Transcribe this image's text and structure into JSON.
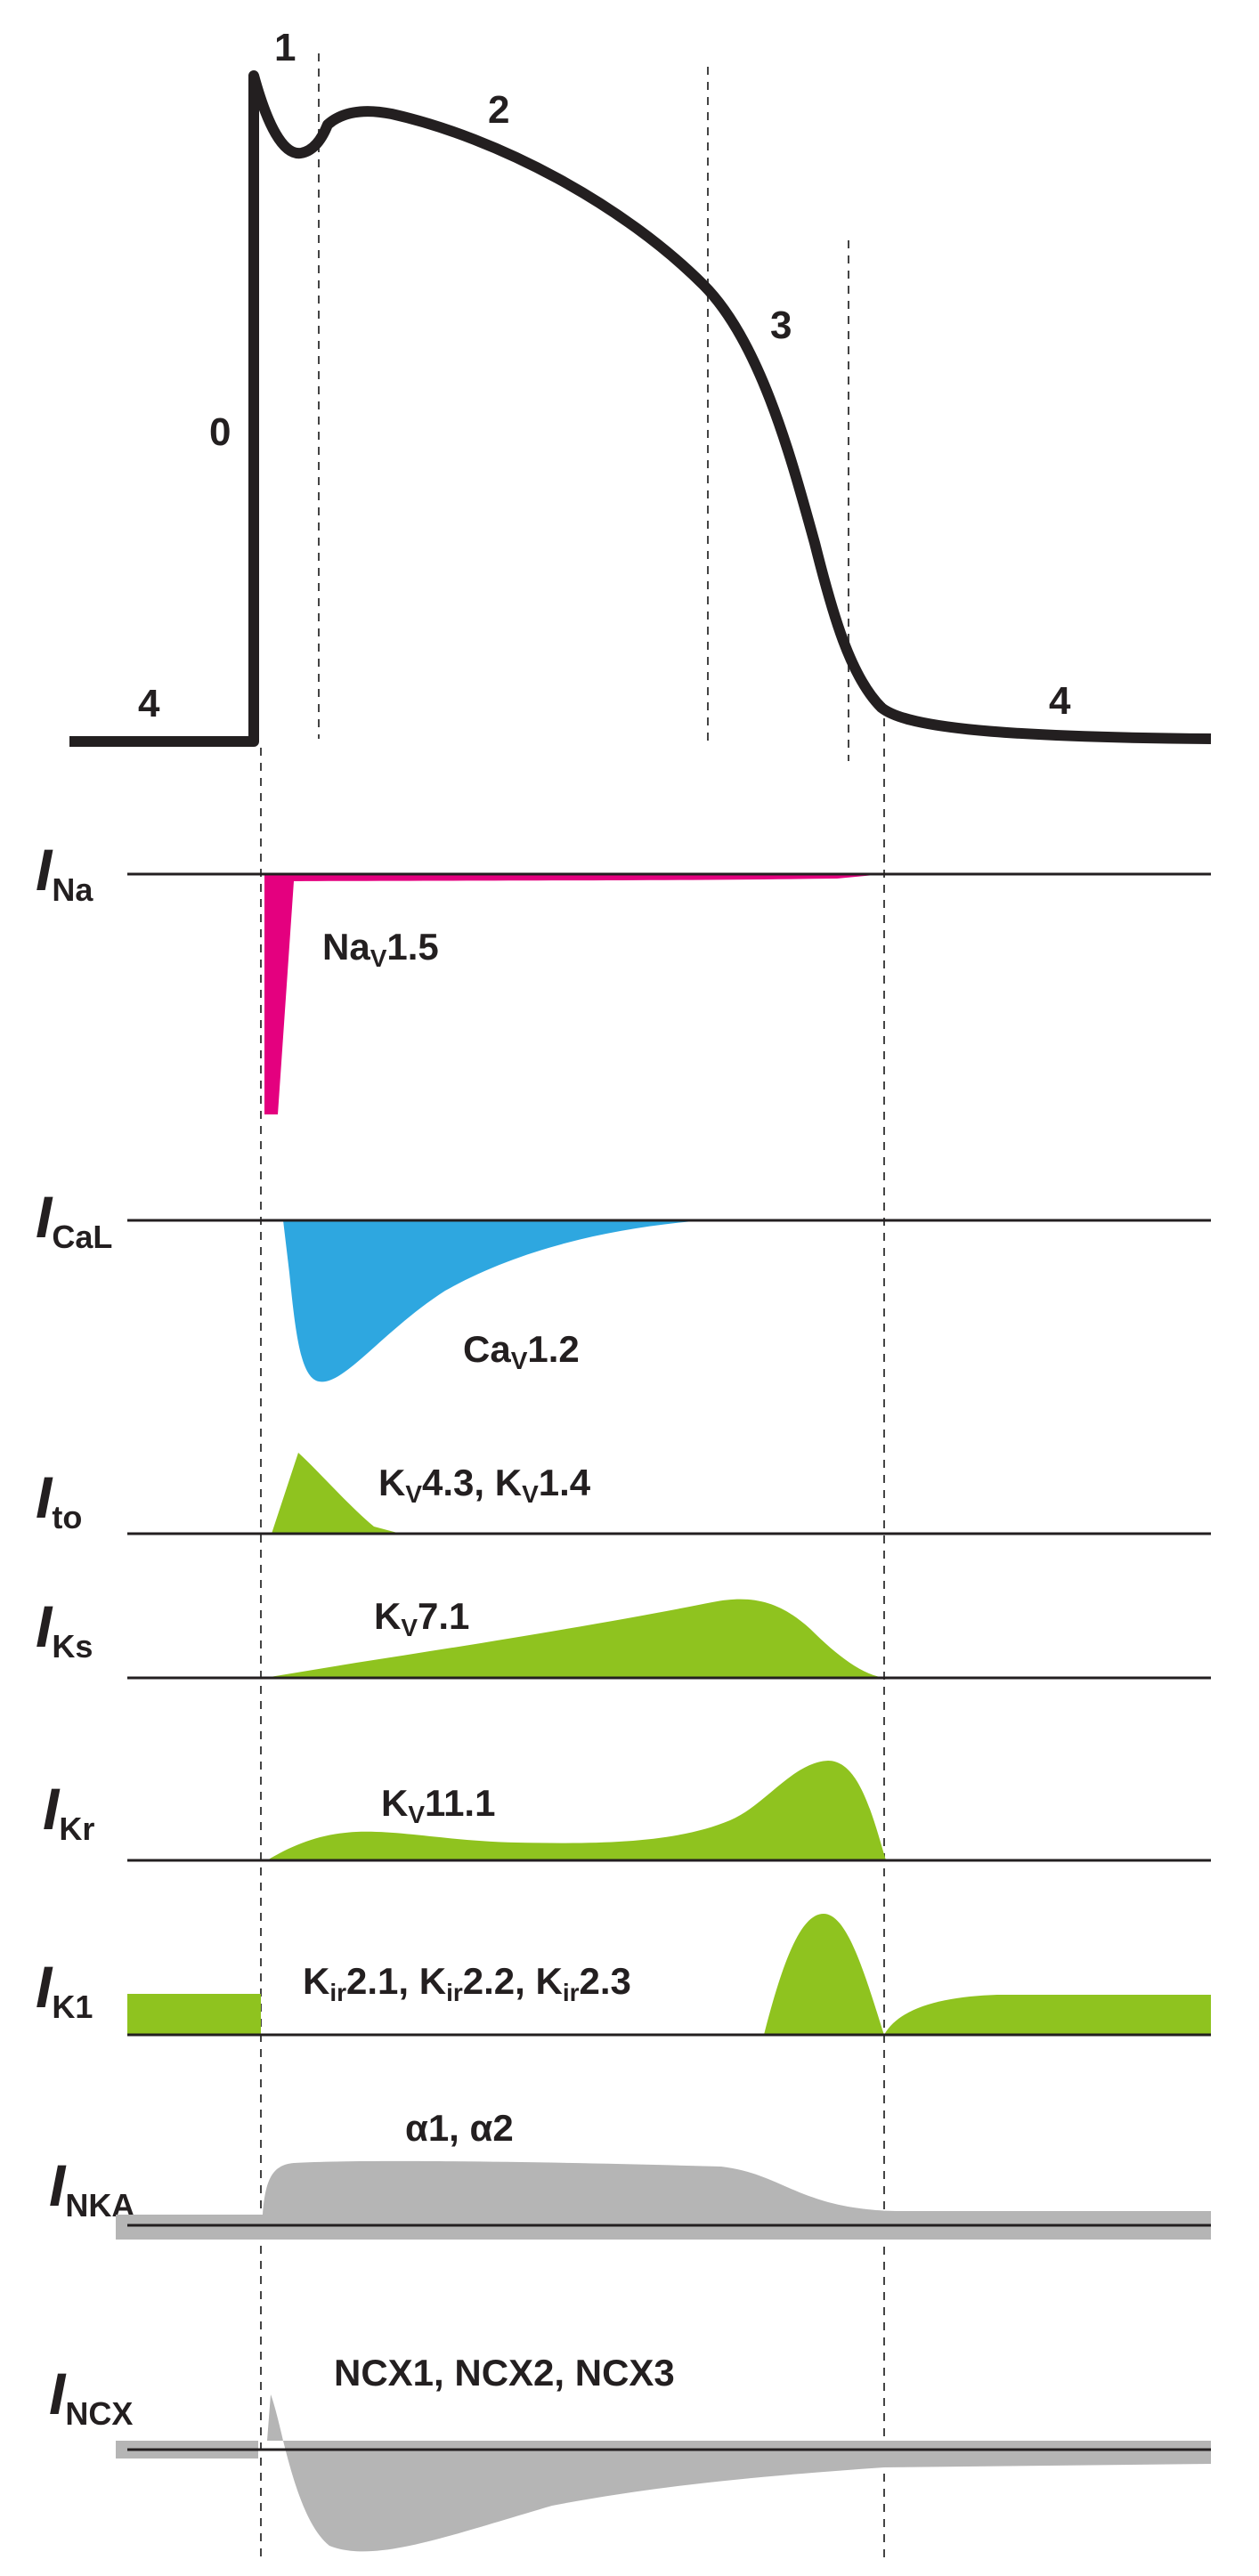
{
  "action_potential": {
    "phases": [
      "0",
      "1",
      "2",
      "3",
      "4",
      "4"
    ]
  },
  "currents": [
    {
      "symbol": "I",
      "subscript": "Na",
      "channel": [
        [
          "Na",
          ""
        ],
        [
          "V",
          "sub"
        ],
        [
          "1.5",
          ""
        ]
      ]
    },
    {
      "symbol": "I",
      "subscript": "CaL",
      "channel": [
        [
          "Ca",
          ""
        ],
        [
          "V",
          "sub"
        ],
        [
          "1.2",
          ""
        ]
      ]
    },
    {
      "symbol": "I",
      "subscript": "to",
      "channel": [
        [
          "K",
          ""
        ],
        [
          "V",
          "sub"
        ],
        [
          "4.3, K",
          ""
        ],
        [
          "V",
          "sub"
        ],
        [
          "1.4",
          ""
        ]
      ]
    },
    {
      "symbol": "I",
      "subscript": "Ks",
      "channel": [
        [
          "K",
          ""
        ],
        [
          "V",
          "sub"
        ],
        [
          "7.1",
          ""
        ]
      ]
    },
    {
      "symbol": "I",
      "subscript": "Kr",
      "channel": [
        [
          "K",
          ""
        ],
        [
          "V",
          "sub"
        ],
        [
          "11.1",
          ""
        ]
      ]
    },
    {
      "symbol": "I",
      "subscript": "K1",
      "channel": [
        [
          "K",
          ""
        ],
        [
          "ir",
          "sub"
        ],
        [
          "2.1, K",
          ""
        ],
        [
          "ir",
          "sub"
        ],
        [
          "2.2, K",
          ""
        ],
        [
          "ir",
          "sub"
        ],
        [
          "2.3",
          ""
        ]
      ]
    },
    {
      "symbol": "I",
      "subscript": "NKA",
      "channel": [
        [
          "α1, α2",
          ""
        ]
      ]
    },
    {
      "symbol": "I",
      "subscript": "NCX",
      "channel": [
        [
          "NCX1, NCX2, NCX3",
          ""
        ]
      ]
    }
  ],
  "colors": {
    "sodium": "#e4007f",
    "calcium": "#2ea7e0",
    "potassium": "#8fc31f",
    "pump_exchanger": "#b5b5b5",
    "line": "#231f20"
  }
}
